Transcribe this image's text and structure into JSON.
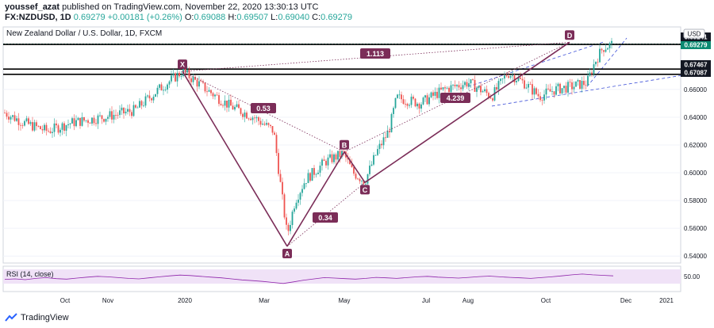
{
  "header": {
    "author": "youssef_azat",
    "published_text": "published on TradingView.com, November 22, 2020 13:30:13 UTC",
    "symbol": "FX:NZDUSD, 1D",
    "last": "0.69279",
    "change": "+0.00181 (+0.26%)",
    "open_label": "O:",
    "open": "0.69088",
    "high_label": "H:",
    "high": "0.69507",
    "low_label": "L:",
    "low": "0.69040",
    "close_label": "C:",
    "close": "0.69279"
  },
  "chart_title": "New Zealand Dollar / U.S. Dollar, 1D, FXCM",
  "currency": "USD",
  "brand": "TradingView",
  "colors": {
    "up": "#26a69a",
    "down": "#ef5350",
    "pattern": "#7b2d58",
    "channel": "#3f51d8",
    "rsi_fill": "#e8d5f5",
    "rsi_line": "#8e24aa",
    "price_tag": "#0b8a72"
  },
  "chart_data": {
    "type": "candlestick",
    "title": "New Zealand Dollar / U.S. Dollar, 1D, FXCM",
    "y_axis": {
      "range": [
        0.535,
        0.705
      ],
      "ticks": [
        "0.54000",
        "0.56000",
        "0.58000",
        "0.60000",
        "0.62000",
        "0.64000",
        "0.66000"
      ]
    },
    "x_axis": {
      "ticks": [
        "Oct",
        "Nov",
        "2020",
        "Mar",
        "May",
        "Jul",
        "Aug",
        "Oct",
        "Dec",
        "2021"
      ]
    },
    "price_path": [
      {
        "x": 0,
        "y": 0.645
      },
      {
        "x": 30,
        "y": 0.636
      },
      {
        "x": 60,
        "y": 0.63
      },
      {
        "x": 90,
        "y": 0.636
      },
      {
        "x": 130,
        "y": 0.64
      },
      {
        "x": 170,
        "y": 0.645
      },
      {
        "x": 200,
        "y": 0.66
      },
      {
        "x": 230,
        "y": 0.673
      },
      {
        "x": 260,
        "y": 0.66
      },
      {
        "x": 290,
        "y": 0.648
      },
      {
        "x": 320,
        "y": 0.64
      },
      {
        "x": 345,
        "y": 0.63
      },
      {
        "x": 355,
        "y": 0.585
      },
      {
        "x": 362,
        "y": 0.555
      },
      {
        "x": 372,
        "y": 0.58
      },
      {
        "x": 385,
        "y": 0.595
      },
      {
        "x": 410,
        "y": 0.608
      },
      {
        "x": 433,
        "y": 0.614
      },
      {
        "x": 445,
        "y": 0.6
      },
      {
        "x": 460,
        "y": 0.594
      },
      {
        "x": 475,
        "y": 0.615
      },
      {
        "x": 490,
        "y": 0.63
      },
      {
        "x": 500,
        "y": 0.654
      },
      {
        "x": 530,
        "y": 0.65
      },
      {
        "x": 560,
        "y": 0.66
      },
      {
        "x": 590,
        "y": 0.665
      },
      {
        "x": 620,
        "y": 0.655
      },
      {
        "x": 640,
        "y": 0.672
      },
      {
        "x": 660,
        "y": 0.665
      },
      {
        "x": 680,
        "y": 0.655
      },
      {
        "x": 700,
        "y": 0.66
      },
      {
        "x": 720,
        "y": 0.662
      },
      {
        "x": 740,
        "y": 0.665
      },
      {
        "x": 750,
        "y": 0.68
      },
      {
        "x": 760,
        "y": 0.69
      },
      {
        "x": 773,
        "y": 0.6928
      }
    ],
    "horizontal_levels": [
      {
        "value": 0.69279,
        "label": "0.69279",
        "tag": "green"
      },
      {
        "value": 0.69241,
        "label": "0.69241",
        "tag": "black"
      },
      {
        "value": 0.67467,
        "label": "0.67467",
        "tag": "black"
      },
      {
        "value": 0.67087,
        "label": "0.67087",
        "tag": "black"
      }
    ],
    "pattern_points": [
      {
        "label": "X",
        "y": 0.673
      },
      {
        "label": "A",
        "y": 0.547
      },
      {
        "label": "B",
        "y": 0.615
      },
      {
        "label": "C",
        "y": 0.593
      },
      {
        "label": "D",
        "y": 0.694
      }
    ],
    "ratios": [
      {
        "label": "0.53"
      },
      {
        "label": "0.34"
      },
      {
        "label": "4.239"
      },
      {
        "label": "1.113"
      }
    ],
    "rsi": {
      "label": "RSI (14, close)",
      "level_label": "50.00",
      "band": [
        30,
        70
      ],
      "values": [
        48,
        50,
        47,
        52,
        55,
        51,
        49,
        53,
        57,
        60,
        58,
        55,
        52,
        50,
        54,
        58,
        62,
        65,
        63,
        60,
        57,
        54,
        50,
        46,
        43,
        40,
        36,
        32,
        38,
        45,
        50,
        55,
        53,
        51,
        49,
        52,
        56,
        54,
        52,
        55,
        58,
        60,
        57,
        55,
        53,
        56,
        59,
        61,
        58,
        56,
        54,
        52,
        55,
        58,
        62,
        66,
        69,
        66,
        64,
        62
      ]
    }
  }
}
